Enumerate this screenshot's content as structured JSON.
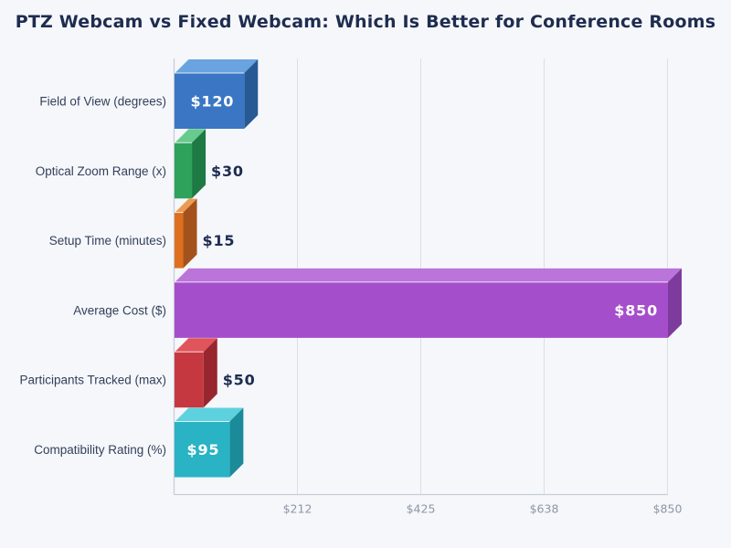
{
  "colors": {
    "background": "#f5f7fb",
    "title": "#1e2c4f",
    "category_label": "#34405a",
    "tick_label": "#8e96a6",
    "axis_line": "#c6ccd6",
    "grid_line": "#dbdfe6",
    "value_inside": "#ffffff",
    "value_outside": "#1e2c4f",
    "bar_edge_highlight": "rgba(255,255,255,0.8)"
  },
  "chart_data": {
    "type": "bar",
    "orientation": "horizontal",
    "title": "PTZ Webcam vs Fixed Webcam: Which Is Better for Conference Rooms",
    "categories": [
      "Field of View (degrees)",
      "Optical Zoom Range (x)",
      "Setup Time (minutes)",
      "Average Cost ($)",
      "Participants Tracked (max)",
      "Compatibility Rating (%)"
    ],
    "values": [
      120,
      30,
      15,
      850,
      50,
      95
    ],
    "value_labels": [
      "$120",
      "$30",
      "$15",
      "$850",
      "$50",
      "$95"
    ],
    "value_label_placement": [
      "inside",
      "outside",
      "outside",
      "inside",
      "outside",
      "inside"
    ],
    "bar_colors": [
      {
        "front": "#3a76c3",
        "top": "#69a3e0",
        "side": "#275a94"
      },
      {
        "front": "#2ea15b",
        "top": "#67cb8e",
        "side": "#1d7a42"
      },
      {
        "front": "#de6f1e",
        "top": "#ec9b52",
        "side": "#a4521b"
      },
      {
        "front": "#a54ecb",
        "top": "#ba74da",
        "side": "#7d3b9e"
      },
      {
        "front": "#c5383f",
        "top": "#e0545c",
        "side": "#97262e"
      },
      {
        "front": "#29b3c4",
        "top": "#5dd2de",
        "side": "#1b8b99"
      }
    ],
    "x_ticks": [
      {
        "value": 212.5,
        "label": "$212"
      },
      {
        "value": 425,
        "label": "$425"
      },
      {
        "value": 637.5,
        "label": "$638"
      },
      {
        "value": 850,
        "label": "$850"
      }
    ],
    "xlim": [
      0,
      850
    ],
    "xlabel": "",
    "ylabel": "",
    "grid": true,
    "legend": false
  }
}
